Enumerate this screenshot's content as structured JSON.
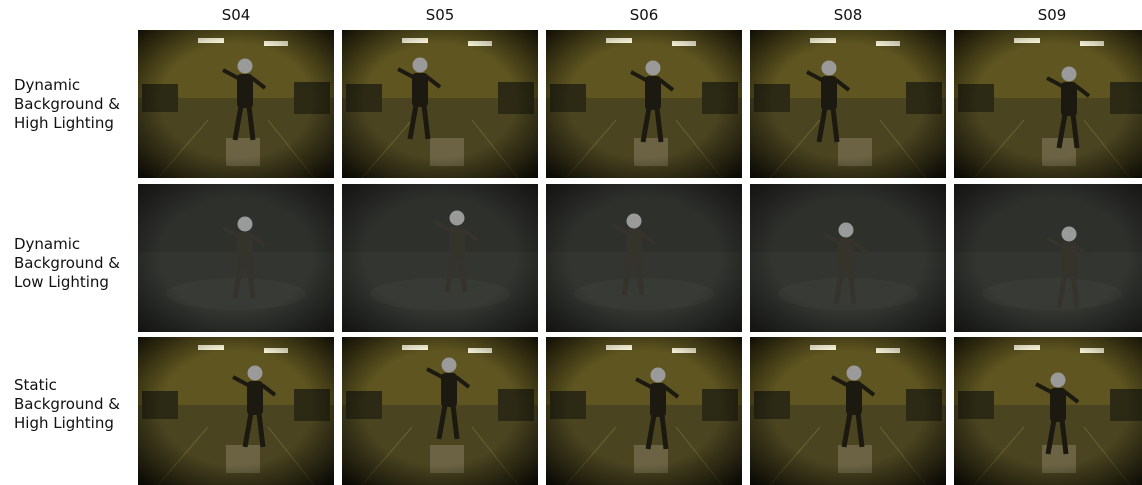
{
  "columns": [
    "S04",
    "S05",
    "S06",
    "S08",
    "S09"
  ],
  "rows": [
    {
      "label_lines": [
        "Dynamic",
        "Background &",
        "High Lighting"
      ],
      "lighting": "high",
      "background": "dynamic"
    },
    {
      "label_lines": [
        "Dynamic",
        "Background &",
        "Low Lighting"
      ],
      "lighting": "low",
      "background": "dynamic"
    },
    {
      "label_lines": [
        "Static",
        "Background &",
        "High Lighting"
      ],
      "lighting": "high",
      "background": "static"
    }
  ],
  "colors": {
    "high_wall": "#5e5520",
    "high_floor": "#4a4420",
    "low_wall": "#2e302c",
    "low_floor": "#323530",
    "face_blur": "#9a9a9a",
    "vignette": "#000000",
    "light_fixture": "#fffbe0"
  }
}
